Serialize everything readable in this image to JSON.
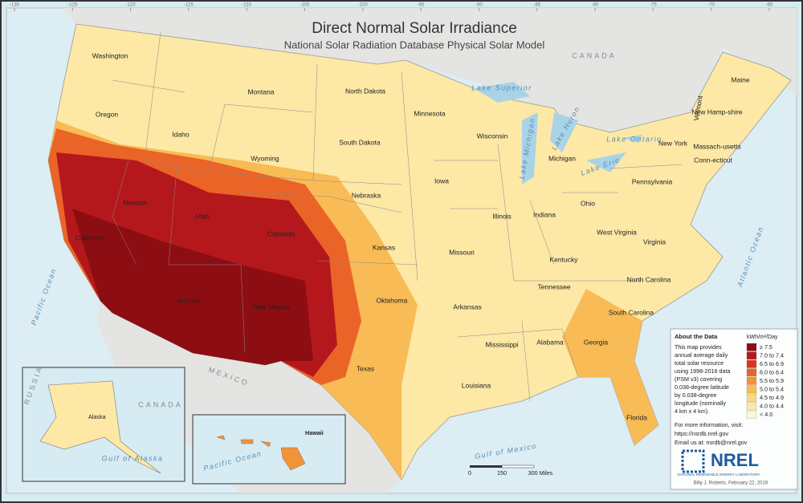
{
  "header": {
    "title": "Direct Normal Solar Irradiance",
    "subtitle": "National Solar Radiation Database Physical Solar Model"
  },
  "states": [
    "Washington",
    "Oregon",
    "Idaho",
    "Montana",
    "Wyoming",
    "Nevada",
    "Utah",
    "Colorado",
    "California",
    "Arizona",
    "New Mexico",
    "North Dakota",
    "South Dakota",
    "Nebraska",
    "Kansas",
    "Oklahoma",
    "Texas",
    "Minnesota",
    "Iowa",
    "Missouri",
    "Arkansas",
    "Louisiana",
    "Wisconsin",
    "Illinois",
    "Michigan",
    "Indiana",
    "Ohio",
    "Kentucky",
    "Tennessee",
    "Mississippi",
    "Alabama",
    "Georgia",
    "Florida",
    "South Carolina",
    "North Carolina",
    "Virginia",
    "West Virginia",
    "Pennsylvania",
    "New York",
    "Maine",
    "Vermont",
    "New Hamp-shire",
    "Massach-usetts",
    "Conn-ecticut"
  ],
  "places": {
    "canada": "CANADA",
    "mexico": "MEXICO",
    "pacific": "Pacific Ocean",
    "atlantic": "Atlantic Ocean",
    "gulf": "Gulf of Mexico",
    "lake_superior": "Lake Superior",
    "lake_michigan": "Lake Michigan",
    "lake_huron": "Lake Huron",
    "lake_ontario": "Lake Ontario",
    "lake_erie": "Lake Erie"
  },
  "insets": {
    "alaska": "Alaska",
    "gulf_of_alaska": "Gulf of Alaska",
    "canada": "CANADA",
    "russia": "RUSSIA",
    "hawaii": "Hawaii",
    "pacific": "Pacific Ocean"
  },
  "longitudes": [
    "-130",
    "-125",
    "-120",
    "-115",
    "-110",
    "-105",
    "-100",
    "-95",
    "-90",
    "-85",
    "-80",
    "-75",
    "-70",
    "-65"
  ],
  "scale": [
    "0",
    "150",
    "300 Miles"
  ],
  "legend": {
    "title": "kWh/m²/Day",
    "items": [
      {
        "label": "≥ 7.5",
        "color": "#8c0d12"
      },
      {
        "label": "7.0 to 7.4",
        "color": "#b5181c"
      },
      {
        "label": "6.5 to 6.9",
        "color": "#d8351f"
      },
      {
        "label": "6.0 to 6.4",
        "color": "#ea6428"
      },
      {
        "label": "5.5 to 5.9",
        "color": "#f39338"
      },
      {
        "label": "5.0 to 5.4",
        "color": "#f8bb55"
      },
      {
        "label": "4.5 to 4.9",
        "color": "#fbd77e"
      },
      {
        "label": "4.0 to 4.4",
        "color": "#fde8a6"
      },
      {
        "label": "< 4.0",
        "color": "#fef6d3"
      }
    ]
  },
  "about": {
    "title": "About the Data",
    "lines": [
      "This map provides",
      "annual average daily",
      "total solar resource",
      "using 1998-2016 data",
      "(PSM v3) covering",
      "0.038-degree latitude",
      "by 0.038-degree",
      "longitude (nominally",
      "4 km x 4 km)."
    ],
    "more": "For more information, visit:",
    "url": "https://nsrdb.nrel.gov",
    "email": "Email us at: nsrdb@nrel.gov"
  },
  "logo": {
    "name": "NREL",
    "full": "NATIONAL RENEWABLE ENERGY LABORATORY"
  },
  "credit": "Billy J. Roberts, February 22, 2018"
}
